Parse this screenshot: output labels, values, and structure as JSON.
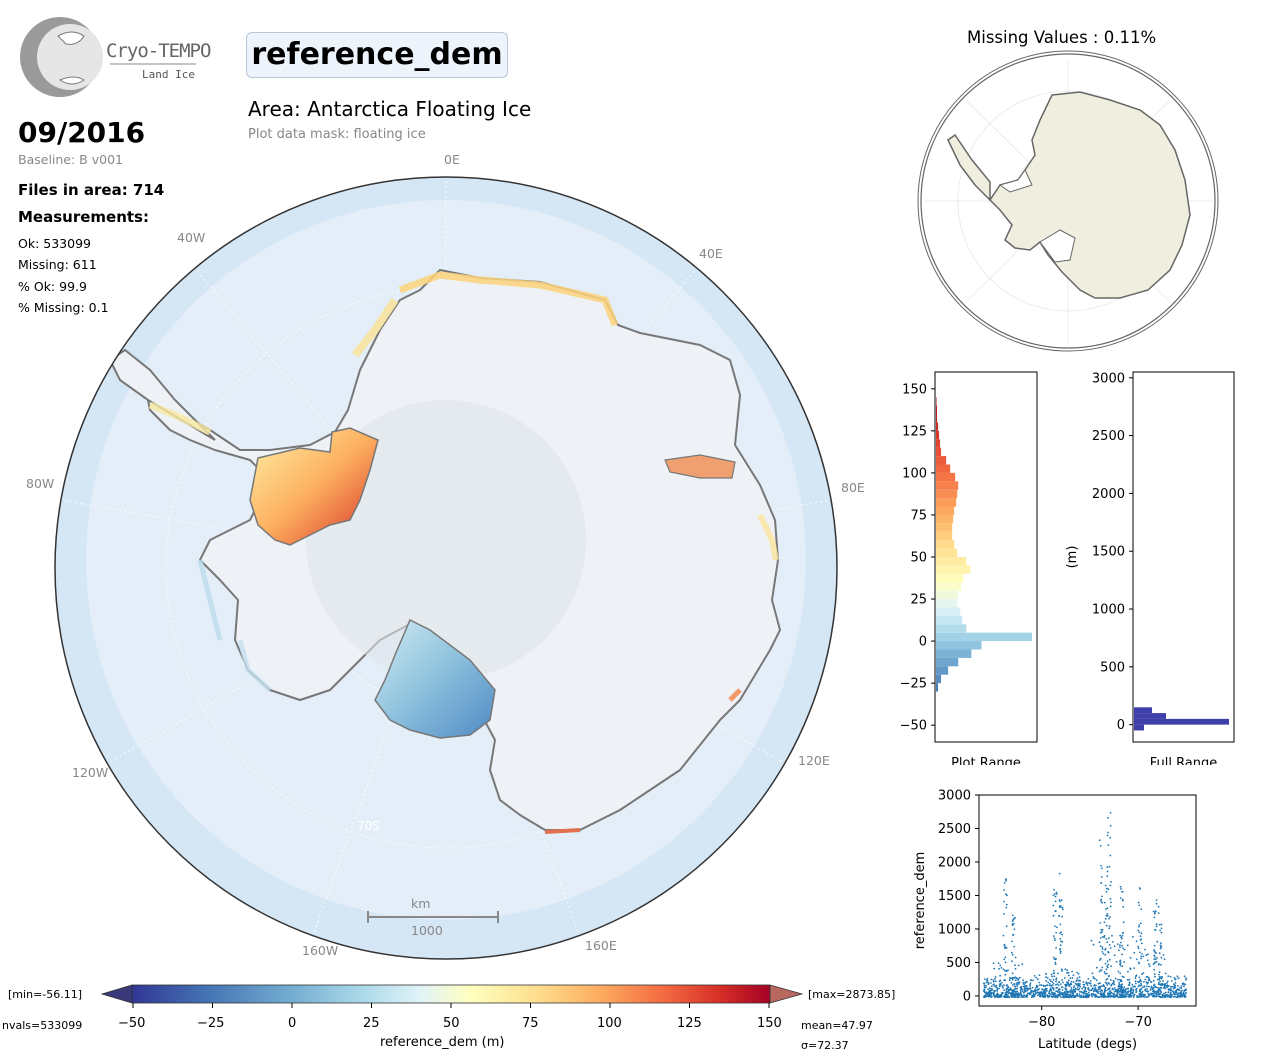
{
  "logo": {
    "name": "Cryo-TEMPO",
    "sub": "Land Ice"
  },
  "header": {
    "parameter": "reference_dem",
    "area_title": "Area: Antarctica Floating Ice",
    "mask": "Plot data mask: floating ice",
    "date": "09/2016",
    "baseline": "Baseline: B v001",
    "files": "Files in area: 714",
    "measurements_title": "Measurements:",
    "ok": "Ok: 533099",
    "missing": "Missing: 611",
    "pct_ok": "% Ok: 99.9",
    "pct_missing": "% Missing: 0.1"
  },
  "map": {
    "lon_labels": [
      "0E",
      "40W",
      "40E",
      "80W",
      "80E",
      "120W",
      "120E",
      "160W",
      "160E"
    ],
    "lat_label": "70S",
    "scalebar_unit": "km",
    "scalebar_value": "1000"
  },
  "inset": {
    "title": "Missing Values : 0.11%"
  },
  "colorbar": {
    "label": "reference_dem (m)",
    "ticks": [
      "−50",
      "−25",
      "0",
      "25",
      "50",
      "75",
      "100",
      "125",
      "150"
    ],
    "min_label": "[min=-56.11]",
    "max_label": "[max=2873.85]",
    "nvals": "nvals=533099",
    "mean": "mean=47.97",
    "sigma": "σ=72.37"
  },
  "colors": {
    "ocean": "#d5e6f5",
    "ice": "#eef2f7",
    "coast": "#777777",
    "land_inset": "#f0efdf",
    "hist_full": "#3f3faa",
    "scatter": "#1f77b4"
  },
  "chart_data": [
    {
      "type": "bar",
      "orientation": "horizontal",
      "title": "",
      "xlabel": "Plot Range",
      "ylabel": "",
      "ylim": [
        -60,
        160
      ],
      "yticks": [
        "−50",
        "−25",
        "0",
        "25",
        "50",
        "75",
        "100",
        "125",
        "150"
      ],
      "bins": [
        -30,
        -25,
        -20,
        -15,
        -10,
        -5,
        0,
        5,
        10,
        15,
        20,
        25,
        30,
        35,
        40,
        45,
        50,
        55,
        60,
        65,
        70,
        75,
        80,
        85,
        90,
        95,
        100,
        105,
        110,
        115,
        120,
        125,
        130,
        135,
        140
      ],
      "values": [
        2,
        5,
        12,
        22,
        35,
        45,
        95,
        30,
        26,
        24,
        21,
        22,
        25,
        27,
        34,
        30,
        21,
        18,
        16,
        16,
        17,
        18,
        20,
        21,
        22,
        19,
        14,
        10,
        5,
        4,
        3,
        2,
        1,
        1,
        0.5
      ]
    },
    {
      "type": "bar",
      "orientation": "horizontal",
      "xlabel": "Full Range",
      "ylabel": "(m)",
      "ylim": [
        -150,
        3050
      ],
      "yticks": [
        "0",
        "500",
        "1000",
        "1500",
        "2000",
        "2500",
        "3000"
      ],
      "bins": [
        -50,
        0,
        50,
        100
      ],
      "values": [
        10,
        95,
        32,
        18
      ]
    },
    {
      "type": "scatter",
      "xlabel": "Latitude (degs)",
      "ylabel": "reference_dem",
      "xlim": [
        -86.5,
        -64
      ],
      "ylim": [
        -150,
        3000
      ],
      "xticks": [
        "−80",
        "−70"
      ],
      "yticks": [
        "0",
        "500",
        "1000",
        "1500",
        "2000",
        "2500",
        "3000"
      ]
    }
  ]
}
